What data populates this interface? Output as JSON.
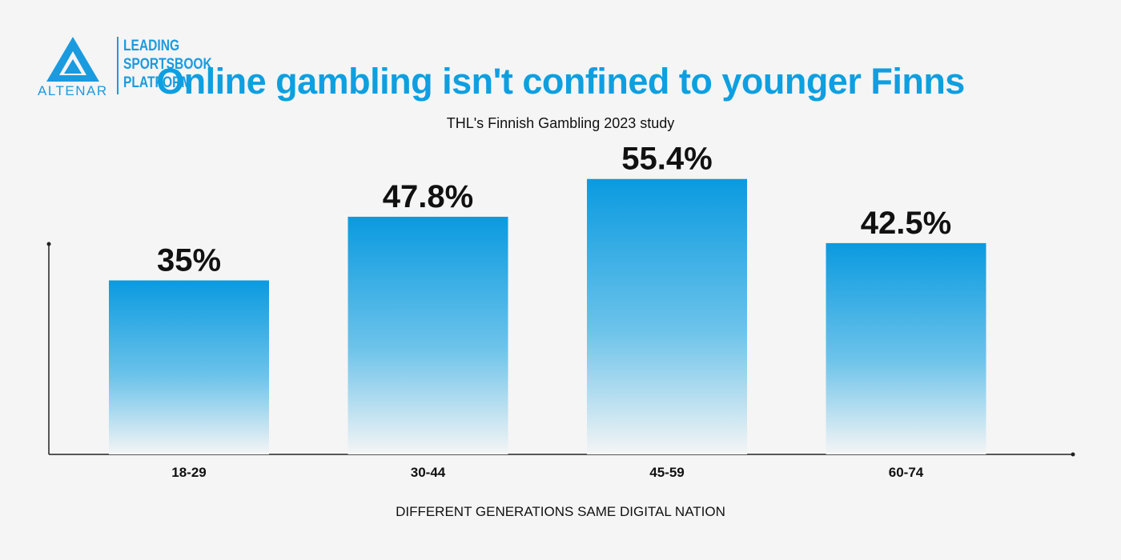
{
  "branding": {
    "logo_word": "ALTENAR",
    "tagline": "LEADING\nSPORTSBOOK\nPLATFORM",
    "brand_color": "#1a9be0"
  },
  "chart_data": {
    "type": "bar",
    "title": "Online gambling isn't confined to younger Finns",
    "subtitle": "THL's Finnish Gambling 2023 study",
    "xlabel": "DIFFERENT GENERATIONS SAME DIGITAL NATION",
    "ylabel": "",
    "categories": [
      "18-29",
      "30-44",
      "45-59",
      "60-74"
    ],
    "values": [
      35,
      47.8,
      55.4,
      42.5
    ],
    "value_labels": [
      "35%",
      "47.8%",
      "55.4%",
      "42.5%"
    ],
    "ylim": [
      0,
      70
    ],
    "grid": false,
    "legend": "none",
    "bar_color_top": "#0a9ae0",
    "bar_color_bottom": "#f5f5f5"
  }
}
